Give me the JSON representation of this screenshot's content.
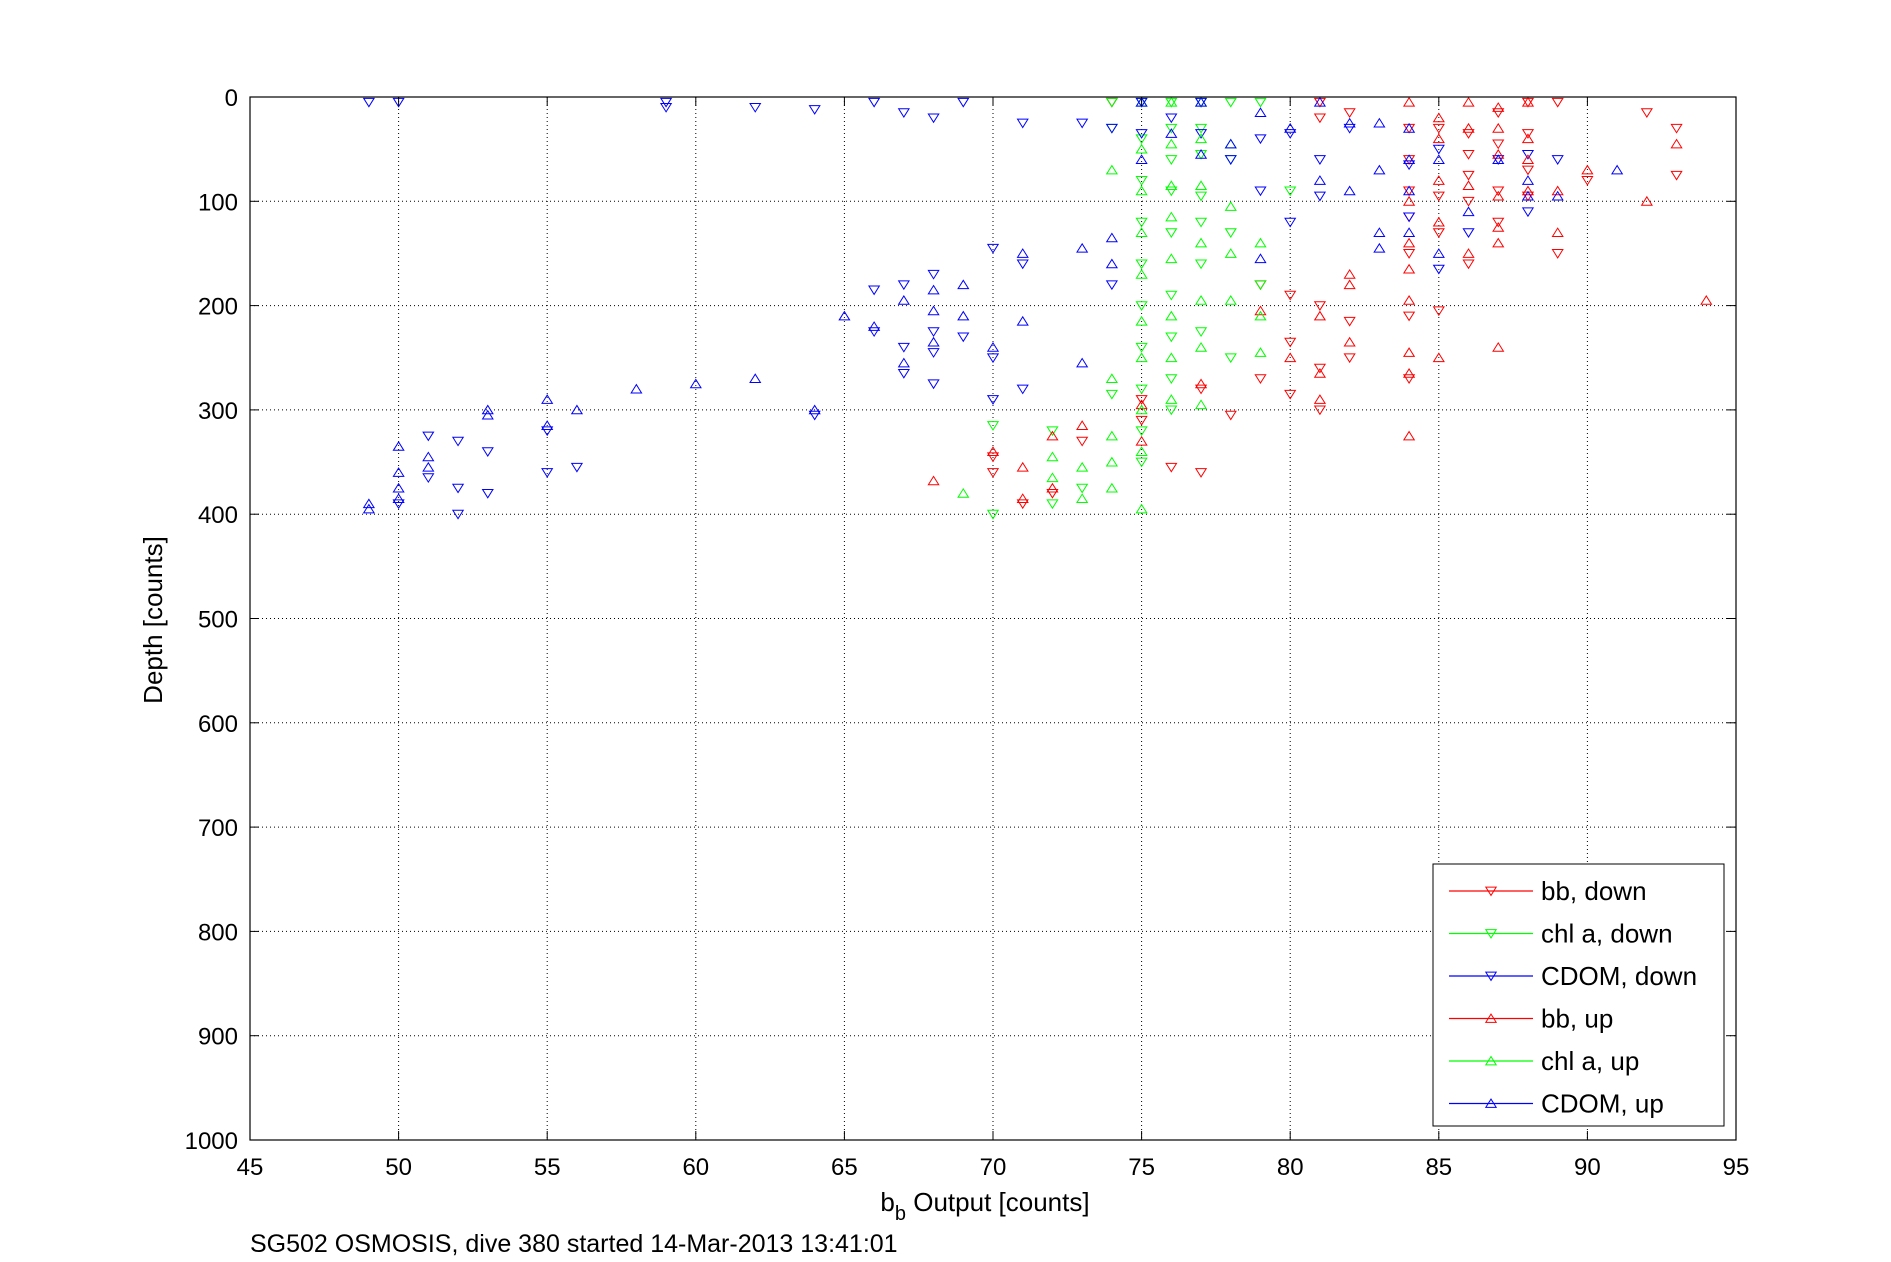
{
  "chart_data": {
    "type": "scatter",
    "xlabel_main": "b",
    "xlabel_sub": "b",
    "xlabel_rest": " Output [counts]",
    "ylabel": "Depth [counts]",
    "footer": "SG502 OSMOSIS, dive 380 started 14-Mar-2013 13:41:01",
    "xlim": [
      45,
      95
    ],
    "ylim": [
      0,
      1000
    ],
    "y_reversed": true,
    "grid": true,
    "legend_position": "bottom-right",
    "xticks": [
      "45",
      "50",
      "55",
      "60",
      "65",
      "70",
      "75",
      "80",
      "85",
      "90",
      "95"
    ],
    "yticks": [
      "0",
      "100",
      "200",
      "300",
      "400",
      "500",
      "600",
      "700",
      "800",
      "900",
      "1000"
    ],
    "series": [
      {
        "name": "bb, down",
        "color": "#ff0000",
        "marker": "triangle-down",
        "points": [
          [
            70,
            345
          ],
          [
            70,
            360
          ],
          [
            71,
            390
          ],
          [
            72,
            380
          ],
          [
            73,
            330
          ],
          [
            74,
            5
          ],
          [
            75,
            290
          ],
          [
            75,
            310
          ],
          [
            76,
            355
          ],
          [
            77,
            360
          ],
          [
            77,
            280
          ],
          [
            78,
            305
          ],
          [
            79,
            270
          ],
          [
            79,
            180
          ],
          [
            80,
            190
          ],
          [
            80,
            235
          ],
          [
            80,
            285
          ],
          [
            81,
            5
          ],
          [
            81,
            20
          ],
          [
            81,
            200
          ],
          [
            81,
            300
          ],
          [
            81,
            260
          ],
          [
            82,
            15
          ],
          [
            82,
            215
          ],
          [
            82,
            250
          ],
          [
            84,
            30
          ],
          [
            84,
            60
          ],
          [
            84,
            90
          ],
          [
            84,
            115
          ],
          [
            84,
            150
          ],
          [
            84,
            210
          ],
          [
            84,
            270
          ],
          [
            85,
            30
          ],
          [
            85,
            95
          ],
          [
            85,
            130
          ],
          [
            85,
            205
          ],
          [
            86,
            35
          ],
          [
            86,
            55
          ],
          [
            86,
            75
          ],
          [
            86,
            100
          ],
          [
            86,
            160
          ],
          [
            87,
            15
          ],
          [
            87,
            45
          ],
          [
            87,
            90
          ],
          [
            87,
            120
          ],
          [
            88,
            5
          ],
          [
            88,
            35
          ],
          [
            88,
            70
          ],
          [
            88,
            95
          ],
          [
            89,
            5
          ],
          [
            89,
            150
          ],
          [
            90,
            80
          ],
          [
            92,
            15
          ],
          [
            93,
            30
          ],
          [
            93,
            75
          ]
        ]
      },
      {
        "name": "chl a, down",
        "color": "#00ff00",
        "marker": "triangle-down",
        "points": [
          [
            70,
            315
          ],
          [
            70,
            400
          ],
          [
            72,
            320
          ],
          [
            72,
            390
          ],
          [
            73,
            375
          ],
          [
            74,
            5
          ],
          [
            74,
            30
          ],
          [
            74,
            285
          ],
          [
            75,
            5
          ],
          [
            75,
            40
          ],
          [
            75,
            80
          ],
          [
            75,
            120
          ],
          [
            75,
            160
          ],
          [
            75,
            200
          ],
          [
            75,
            240
          ],
          [
            75,
            280
          ],
          [
            75,
            320
          ],
          [
            75,
            350
          ],
          [
            76,
            5
          ],
          [
            76,
            30
          ],
          [
            76,
            60
          ],
          [
            76,
            90
          ],
          [
            76,
            130
          ],
          [
            76,
            190
          ],
          [
            76,
            230
          ],
          [
            76,
            270
          ],
          [
            76,
            300
          ],
          [
            77,
            5
          ],
          [
            77,
            30
          ],
          [
            77,
            55
          ],
          [
            77,
            95
          ],
          [
            77,
            120
          ],
          [
            77,
            160
          ],
          [
            77,
            225
          ],
          [
            78,
            5
          ],
          [
            78,
            60
          ],
          [
            78,
            130
          ],
          [
            78,
            250
          ],
          [
            79,
            5
          ],
          [
            79,
            180
          ],
          [
            80,
            90
          ]
        ]
      },
      {
        "name": "CDOM, down",
        "color": "#0000ff",
        "marker": "triangle-down",
        "points": [
          [
            49,
            5
          ],
          [
            50,
            5
          ],
          [
            50,
            390
          ],
          [
            51,
            325
          ],
          [
            51,
            365
          ],
          [
            52,
            330
          ],
          [
            52,
            375
          ],
          [
            52,
            400
          ],
          [
            53,
            340
          ],
          [
            53,
            380
          ],
          [
            55,
            320
          ],
          [
            55,
            360
          ],
          [
            56,
            355
          ],
          [
            59,
            5
          ],
          [
            59,
            10
          ],
          [
            62,
            10
          ],
          [
            64,
            12
          ],
          [
            64,
            305
          ],
          [
            66,
            5
          ],
          [
            66,
            185
          ],
          [
            66,
            225
          ],
          [
            67,
            15
          ],
          [
            67,
            180
          ],
          [
            67,
            240
          ],
          [
            67,
            265
          ],
          [
            68,
            20
          ],
          [
            68,
            170
          ],
          [
            68,
            225
          ],
          [
            68,
            245
          ],
          [
            68,
            275
          ],
          [
            69,
            5
          ],
          [
            69,
            230
          ],
          [
            70,
            145
          ],
          [
            70,
            250
          ],
          [
            70,
            290
          ],
          [
            71,
            25
          ],
          [
            71,
            160
          ],
          [
            71,
            280
          ],
          [
            73,
            25
          ],
          [
            74,
            30
          ],
          [
            74,
            180
          ],
          [
            75,
            5
          ],
          [
            75,
            35
          ],
          [
            76,
            20
          ],
          [
            77,
            5
          ],
          [
            77,
            35
          ],
          [
            78,
            60
          ],
          [
            79,
            40
          ],
          [
            79,
            90
          ],
          [
            80,
            35
          ],
          [
            80,
            120
          ],
          [
            81,
            60
          ],
          [
            81,
            95
          ],
          [
            82,
            30
          ],
          [
            84,
            65
          ],
          [
            84,
            115
          ],
          [
            85,
            50
          ],
          [
            85,
            165
          ],
          [
            86,
            130
          ],
          [
            87,
            60
          ],
          [
            88,
            55
          ],
          [
            88,
            110
          ],
          [
            89,
            60
          ]
        ]
      },
      {
        "name": "bb, up",
        "color": "#ff0000",
        "marker": "triangle-up",
        "points": [
          [
            68,
            368
          ],
          [
            70,
            340
          ],
          [
            71,
            355
          ],
          [
            71,
            385
          ],
          [
            72,
            325
          ],
          [
            72,
            375
          ],
          [
            73,
            315
          ],
          [
            75,
            295
          ],
          [
            75,
            330
          ],
          [
            77,
            275
          ],
          [
            79,
            205
          ],
          [
            80,
            250
          ],
          [
            81,
            210
          ],
          [
            81,
            265
          ],
          [
            81,
            290
          ],
          [
            82,
            170
          ],
          [
            82,
            180
          ],
          [
            82,
            235
          ],
          [
            84,
            5
          ],
          [
            84,
            100
          ],
          [
            84,
            140
          ],
          [
            84,
            165
          ],
          [
            84,
            195
          ],
          [
            84,
            245
          ],
          [
            84,
            265
          ],
          [
            84,
            325
          ],
          [
            85,
            20
          ],
          [
            85,
            40
          ],
          [
            85,
            80
          ],
          [
            85,
            120
          ],
          [
            85,
            250
          ],
          [
            86,
            5
          ],
          [
            86,
            30
          ],
          [
            86,
            85
          ],
          [
            86,
            150
          ],
          [
            87,
            10
          ],
          [
            87,
            30
          ],
          [
            87,
            55
          ],
          [
            87,
            95
          ],
          [
            87,
            125
          ],
          [
            87,
            140
          ],
          [
            87,
            240
          ],
          [
            88,
            5
          ],
          [
            88,
            40
          ],
          [
            88,
            60
          ],
          [
            88,
            90
          ],
          [
            89,
            90
          ],
          [
            89,
            130
          ],
          [
            90,
            70
          ],
          [
            92,
            100
          ],
          [
            93,
            45
          ],
          [
            94,
            195
          ]
        ]
      },
      {
        "name": "chl a, up",
        "color": "#00ff00",
        "marker": "triangle-up",
        "points": [
          [
            69,
            380
          ],
          [
            72,
            345
          ],
          [
            72,
            365
          ],
          [
            73,
            355
          ],
          [
            73,
            385
          ],
          [
            74,
            70
          ],
          [
            74,
            270
          ],
          [
            74,
            325
          ],
          [
            74,
            350
          ],
          [
            74,
            375
          ],
          [
            75,
            5
          ],
          [
            75,
            50
          ],
          [
            75,
            90
          ],
          [
            75,
            130
          ],
          [
            75,
            170
          ],
          [
            75,
            215
          ],
          [
            75,
            250
          ],
          [
            75,
            300
          ],
          [
            75,
            340
          ],
          [
            75,
            395
          ],
          [
            76,
            5
          ],
          [
            76,
            45
          ],
          [
            76,
            85
          ],
          [
            76,
            115
          ],
          [
            76,
            155
          ],
          [
            76,
            210
          ],
          [
            76,
            250
          ],
          [
            76,
            290
          ],
          [
            77,
            5
          ],
          [
            77,
            40
          ],
          [
            77,
            85
          ],
          [
            77,
            140
          ],
          [
            77,
            195
          ],
          [
            77,
            240
          ],
          [
            77,
            295
          ],
          [
            78,
            45
          ],
          [
            78,
            105
          ],
          [
            78,
            150
          ],
          [
            78,
            195
          ],
          [
            79,
            140
          ],
          [
            79,
            210
          ],
          [
            79,
            245
          ]
        ]
      },
      {
        "name": "CDOM, up",
        "color": "#0000ff",
        "marker": "triangle-up",
        "points": [
          [
            49,
            390
          ],
          [
            49,
            395
          ],
          [
            50,
            335
          ],
          [
            50,
            360
          ],
          [
            50,
            375
          ],
          [
            50,
            385
          ],
          [
            51,
            345
          ],
          [
            51,
            355
          ],
          [
            53,
            300
          ],
          [
            53,
            305
          ],
          [
            55,
            290
          ],
          [
            55,
            315
          ],
          [
            56,
            300
          ],
          [
            58,
            280
          ],
          [
            60,
            275
          ],
          [
            62,
            270
          ],
          [
            64,
            300
          ],
          [
            65,
            210
          ],
          [
            66,
            220
          ],
          [
            67,
            195
          ],
          [
            67,
            255
          ],
          [
            68,
            185
          ],
          [
            68,
            205
          ],
          [
            68,
            235
          ],
          [
            69,
            180
          ],
          [
            69,
            210
          ],
          [
            70,
            240
          ],
          [
            71,
            150
          ],
          [
            71,
            215
          ],
          [
            73,
            145
          ],
          [
            73,
            255
          ],
          [
            74,
            135
          ],
          [
            74,
            160
          ],
          [
            75,
            5
          ],
          [
            75,
            60
          ],
          [
            76,
            35
          ],
          [
            77,
            5
          ],
          [
            77,
            55
          ],
          [
            78,
            45
          ],
          [
            79,
            15
          ],
          [
            79,
            155
          ],
          [
            80,
            30
          ],
          [
            81,
            5
          ],
          [
            81,
            80
          ],
          [
            82,
            25
          ],
          [
            82,
            90
          ],
          [
            83,
            25
          ],
          [
            83,
            70
          ],
          [
            83,
            130
          ],
          [
            83,
            145
          ],
          [
            84,
            30
          ],
          [
            84,
            60
          ],
          [
            84,
            90
          ],
          [
            84,
            130
          ],
          [
            85,
            60
          ],
          [
            85,
            150
          ],
          [
            86,
            110
          ],
          [
            87,
            60
          ],
          [
            88,
            80
          ],
          [
            88,
            95
          ],
          [
            89,
            95
          ],
          [
            91,
            70
          ]
        ]
      }
    ]
  }
}
